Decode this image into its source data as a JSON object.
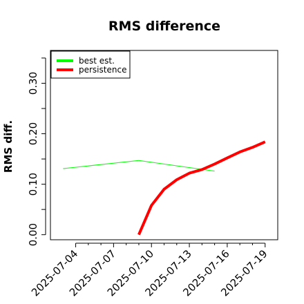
{
  "chart_data": {
    "type": "line",
    "title": "RMS difference",
    "xlabel": "",
    "ylabel": "RMS diff.",
    "x_tick_labels": [
      "2025-07-04",
      "2025-07-07",
      "2025-07-10",
      "2025-07-13",
      "2025-07-16",
      "2025-07-19"
    ],
    "x_ticks": [
      "2025-07-04",
      "2025-07-07",
      "2025-07-10",
      "2025-07-13",
      "2025-07-16",
      "2025-07-19"
    ],
    "y_tick_labels": [
      "0.00",
      "0.10",
      "0.20",
      "0.30"
    ],
    "y_ticks": [
      0.0,
      0.1,
      0.2,
      0.3
    ],
    "xlim": [
      "2025-07-02",
      "2025-07-20"
    ],
    "ylim": [
      -0.01,
      0.365
    ],
    "grid": false,
    "legend_position": "top-left",
    "series": [
      {
        "name": "best est.",
        "color": "#00ff00",
        "x": [
          "2025-07-03",
          "2025-07-09",
          "2025-07-15"
        ],
        "y": [
          0.131,
          0.147,
          0.126
        ]
      },
      {
        "name": "persistence",
        "color": "#ff0000",
        "x": [
          "2025-07-09",
          "2025-07-10",
          "2025-07-11",
          "2025-07-12",
          "2025-07-13",
          "2025-07-14",
          "2025-07-15",
          "2025-07-16",
          "2025-07-17",
          "2025-07-18",
          "2025-07-19"
        ],
        "y": [
          0.0,
          0.058,
          0.09,
          0.109,
          0.122,
          0.129,
          0.14,
          0.152,
          0.164,
          0.173,
          0.184
        ]
      }
    ]
  }
}
